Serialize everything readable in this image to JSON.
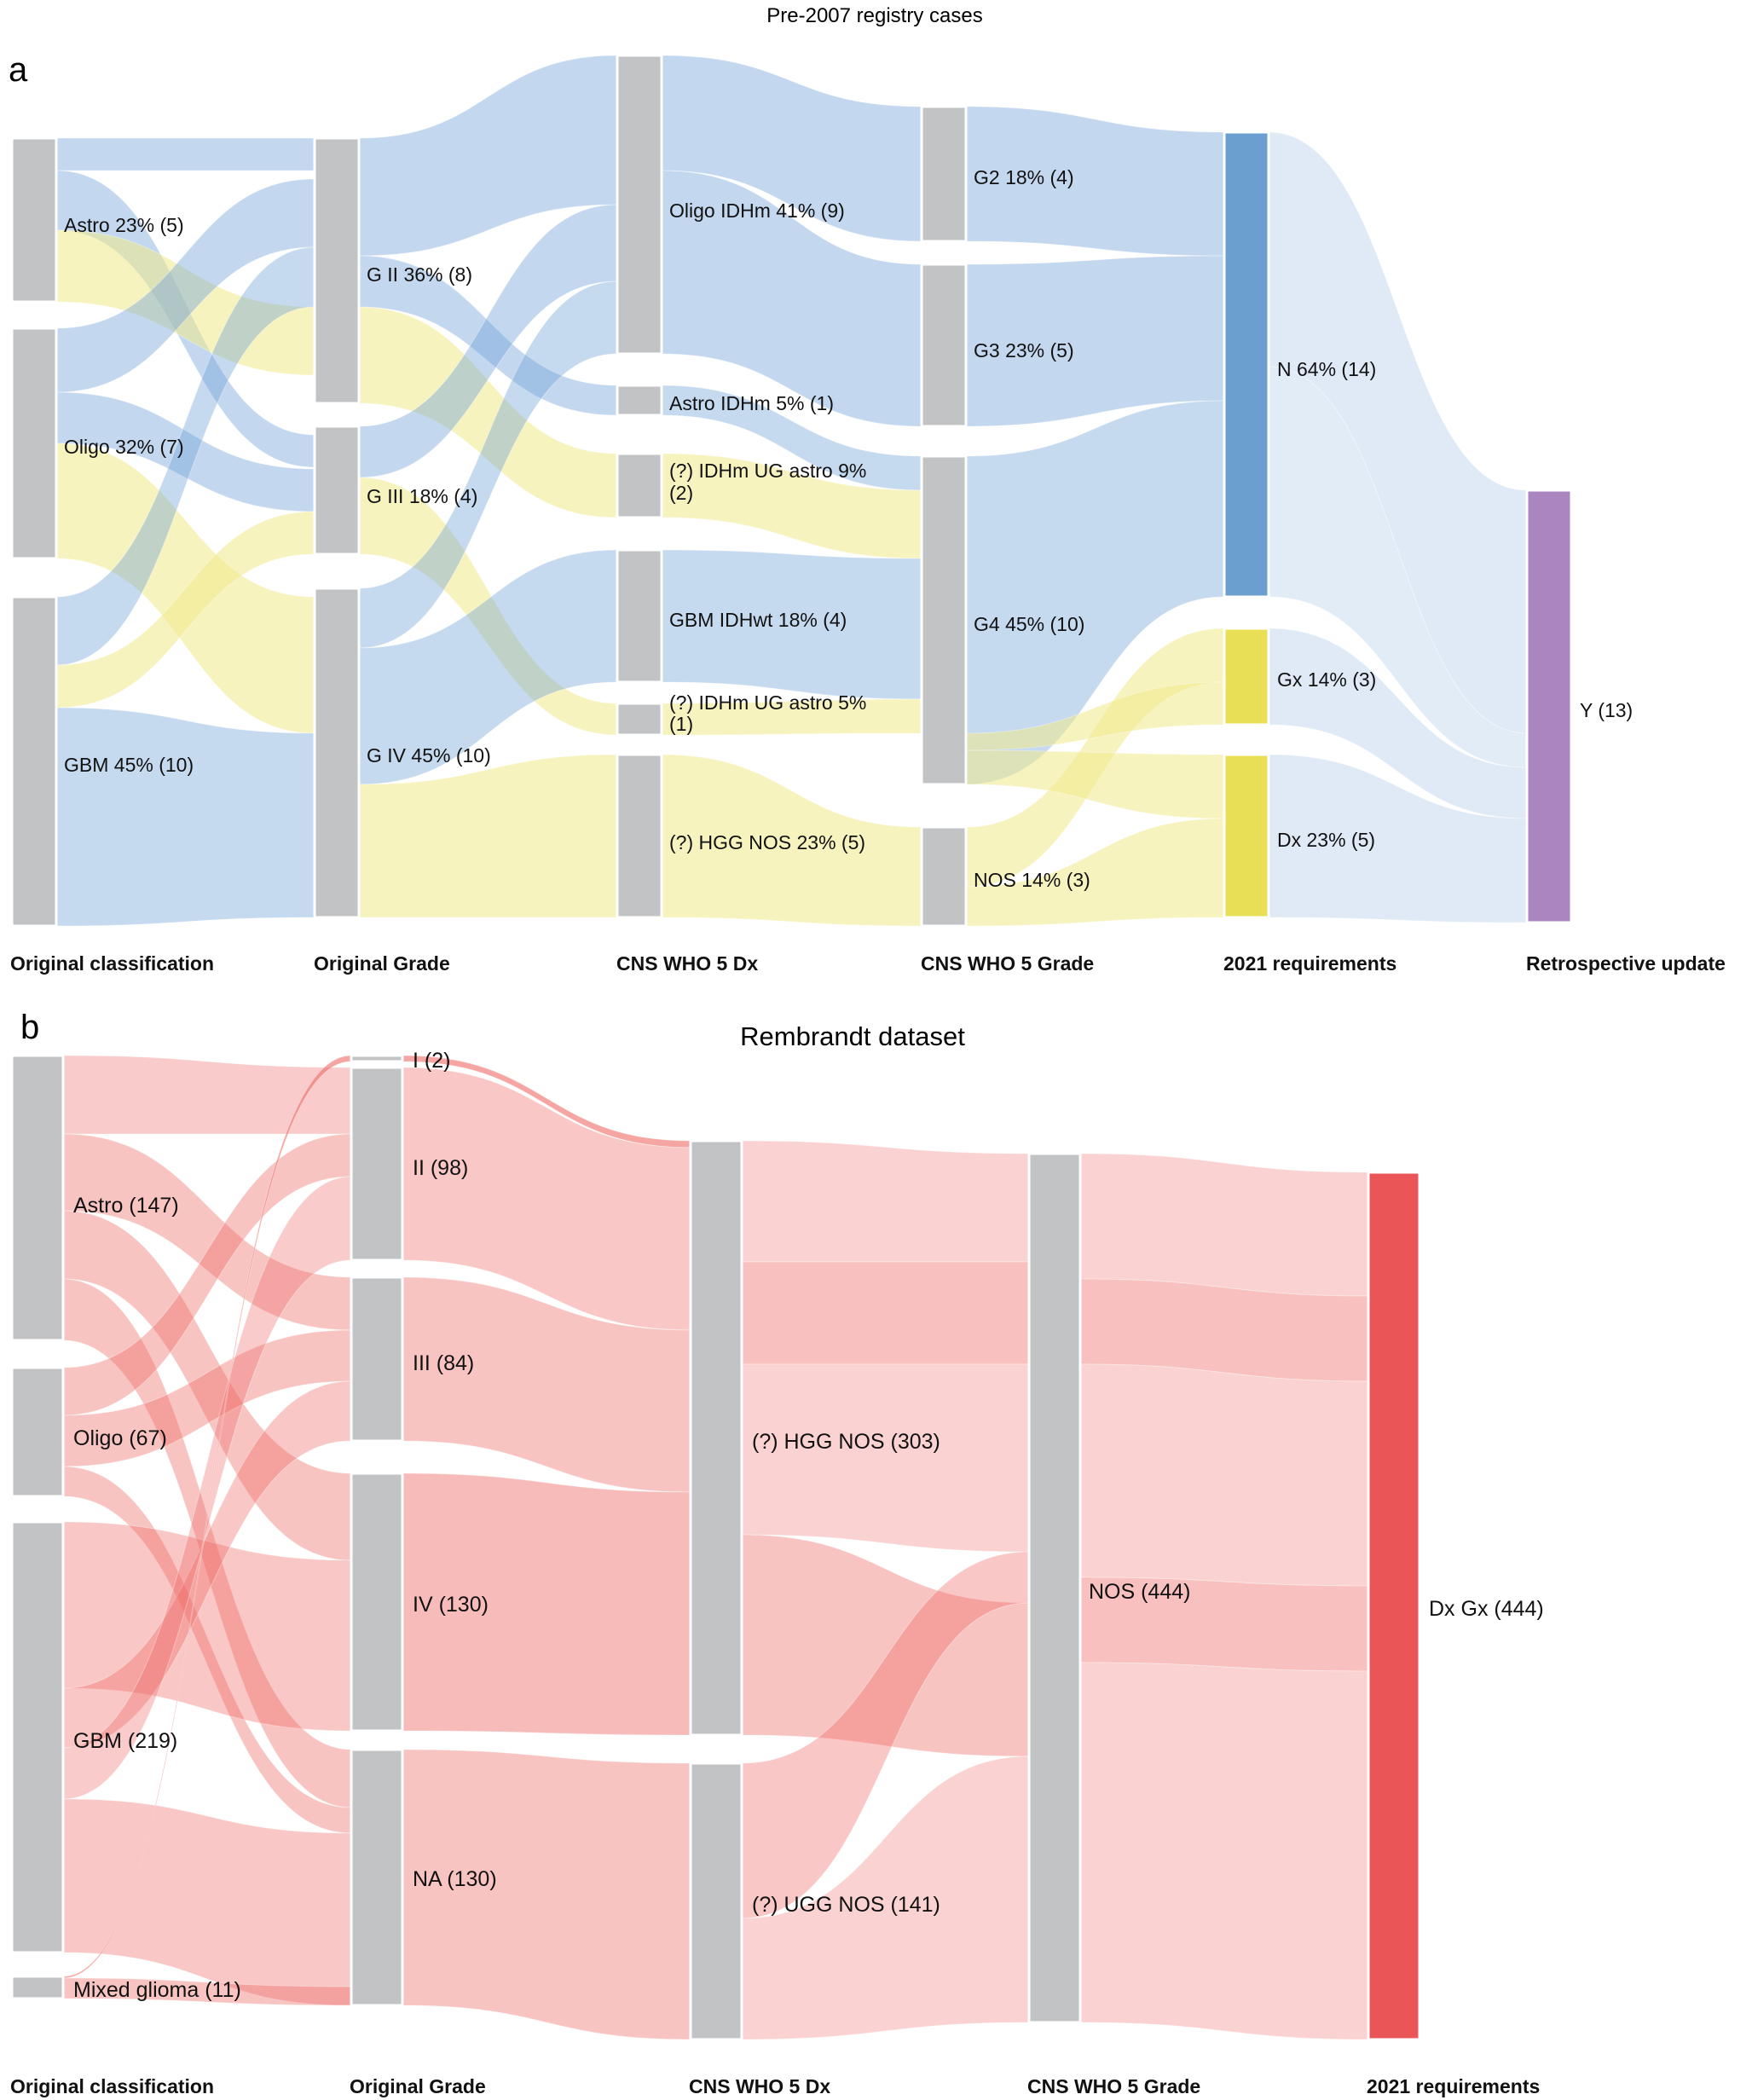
{
  "figure": {
    "panel_a": {
      "letter": "a",
      "title": "Pre-2007 registry cases",
      "stage_labels": [
        "Original classification",
        "Original Grade",
        "CNS WHO 5 Dx",
        "CNS WHO 5 Grade",
        "2021 requirements",
        "Retrospective update"
      ],
      "nodes": [
        {
          "label": "Astro 23% (5)",
          "stage": 0,
          "value": 5
        },
        {
          "label": "Oligo 32% (7)",
          "stage": 0,
          "value": 7
        },
        {
          "label": "GBM 45% (10)",
          "stage": 0,
          "value": 10
        },
        {
          "label": "G II 36% (8)",
          "stage": 1,
          "value": 8
        },
        {
          "label": "G III 18% (4)",
          "stage": 1,
          "value": 4
        },
        {
          "label": "G IV 45% (10)",
          "stage": 1,
          "value": 10
        },
        {
          "label": "Oligo IDHm 41% (9)",
          "stage": 2,
          "value": 9
        },
        {
          "label": "Astro IDHm 5% (1)",
          "stage": 2,
          "value": 1
        },
        {
          "label": "(?) IDHm UG astro 9%",
          "label2": "(2)",
          "stage": 2,
          "value": 2
        },
        {
          "label": "GBM IDHwt 18% (4)",
          "stage": 2,
          "value": 4
        },
        {
          "label": "(?) IDHm UG astro 5%",
          "label2": "(1)",
          "stage": 2,
          "value": 1
        },
        {
          "label": "(?) HGG NOS 23% (5)",
          "stage": 2,
          "value": 5
        },
        {
          "label": "G2 18% (4)",
          "stage": 3,
          "value": 4
        },
        {
          "label": "G3 23% (5)",
          "stage": 3,
          "value": 5
        },
        {
          "label": "G4 45% (10)",
          "stage": 3,
          "value": 10
        },
        {
          "label": "NOS 14% (3)",
          "stage": 3,
          "value": 3
        },
        {
          "label": "N 64% (14)",
          "stage": 4,
          "value": 14
        },
        {
          "label": "Gx 14% (3)",
          "stage": 4,
          "value": 3
        },
        {
          "label": "Dx 23% (5)",
          "stage": 4,
          "value": 5
        },
        {
          "label": "Y (13)",
          "stage": 5,
          "value": 13
        }
      ]
    },
    "panel_b": {
      "letter": "b",
      "title": "Rembrandt dataset",
      "stage_labels": [
        "Original classification",
        "Original Grade",
        "CNS WHO 5 Dx",
        "CNS WHO 5 Grade",
        "2021 requirements"
      ],
      "nodes": [
        {
          "label": "Astro (147)",
          "stage": 0,
          "value": 147
        },
        {
          "label": "Oligo (67)",
          "stage": 0,
          "value": 67
        },
        {
          "label": "GBM (219)",
          "stage": 0,
          "value": 219
        },
        {
          "label": "Mixed glioma (11)",
          "stage": 0,
          "value": 11
        },
        {
          "label": "I (2)",
          "stage": 1,
          "value": 2
        },
        {
          "label": "II (98)",
          "stage": 1,
          "value": 98
        },
        {
          "label": "III (84)",
          "stage": 1,
          "value": 84
        },
        {
          "label": "IV (130)",
          "stage": 1,
          "value": 130
        },
        {
          "label": "NA (130)",
          "stage": 1,
          "value": 130
        },
        {
          "label": "(?) HGG NOS (303)",
          "stage": 2,
          "value": 303
        },
        {
          "label": "(?) UGG NOS (141)",
          "stage": 2,
          "value": 141
        },
        {
          "label": "NOS (444)",
          "stage": 3,
          "value": 444
        },
        {
          "label": "Dx Gx (444)",
          "stage": 4,
          "value": 444
        }
      ]
    },
    "colors": {
      "node": "#c2c3c5",
      "flow_blue": "#6f9fd8",
      "flow_yellow": "#f0e98a",
      "flow_red": "#ee6b66",
      "node_n": "#6a9fd0",
      "node_gx_dx": "#e8df57",
      "node_y": "#ab85c0",
      "node_dxgx": "#ea5658"
    }
  }
}
